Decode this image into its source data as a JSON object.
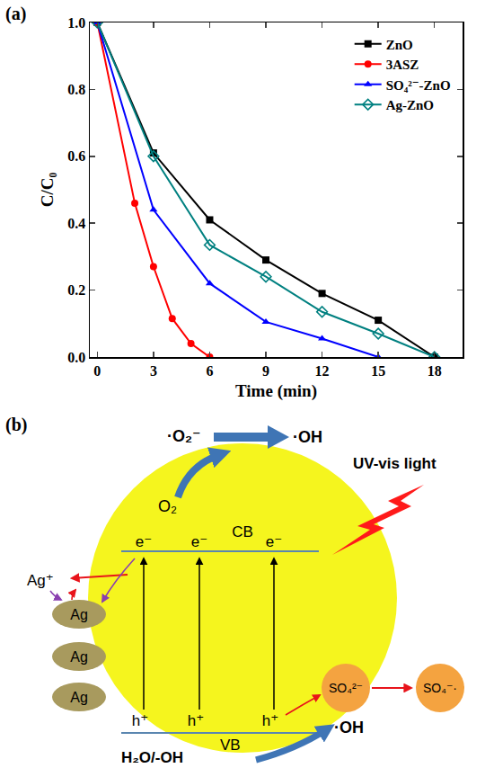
{
  "panel_labels": {
    "a": "(a)",
    "b": "(b)"
  },
  "chart_data": {
    "type": "line",
    "xlabel": "Time (min)",
    "ylabel": "C/C₀",
    "xlim": [
      -0.4,
      19.5
    ],
    "xticks": [
      0,
      3,
      6,
      9,
      12,
      15,
      18
    ],
    "ylim": [
      0,
      1
    ],
    "yticks": [
      {
        "value": 0,
        "label": "0.0"
      },
      0.2,
      0.4,
      0.6,
      0.8,
      {
        "value": 1,
        "label": "1.0"
      }
    ],
    "grid": false,
    "legend": "top right",
    "series": [
      {
        "name": "ZnO",
        "color": "#000000",
        "marker": "square",
        "line_style": "solid",
        "x": [
          0,
          3,
          6,
          9,
          12,
          15,
          18
        ],
        "values": [
          1.0,
          0.61,
          0.41,
          0.29,
          0.19,
          0.11,
          0.0
        ]
      },
      {
        "name": "3ASZ",
        "color": "#ff0000",
        "marker": "circle",
        "line_style": "solid",
        "x": [
          0,
          2,
          3,
          4,
          5,
          6
        ],
        "values": [
          1.0,
          0.46,
          0.27,
          0.115,
          0.04,
          0.0
        ]
      },
      {
        "name": "SO₄²⁻-ZnO",
        "color": "#0000ff",
        "marker": "triangle-up",
        "line_style": "solid",
        "x": [
          0,
          3,
          6,
          9,
          12,
          15
        ],
        "values": [
          1.0,
          0.44,
          0.22,
          0.105,
          0.055,
          0.0
        ]
      },
      {
        "name": "Ag-ZnO",
        "color": "#008080",
        "marker": "diamond-open",
        "line_style": "solid",
        "x": [
          0,
          3,
          6,
          9,
          12,
          15,
          18
        ],
        "values": [
          1.0,
          0.6,
          0.335,
          0.24,
          0.135,
          0.07,
          0.0
        ]
      }
    ]
  },
  "diagram": {
    "superoxide": "·O₂⁻",
    "hydroxyl_top": "·OH",
    "light": "UV-vis light",
    "oxygen": "O₂",
    "conduction_band": "CB",
    "valence_band": "VB",
    "electrons": [
      "e⁻",
      "e⁻",
      "e⁻"
    ],
    "holes": [
      "h⁺",
      "h⁺",
      "h⁺"
    ],
    "silver_ion": "Ag⁺",
    "silver": [
      "Ag",
      "Ag",
      "Ag"
    ],
    "sulfate": "SO₄²⁻",
    "sulfate_radical": "SO₄⁻·",
    "water": "H₂O/-OH",
    "hydroxyl_bottom": "·OH"
  }
}
